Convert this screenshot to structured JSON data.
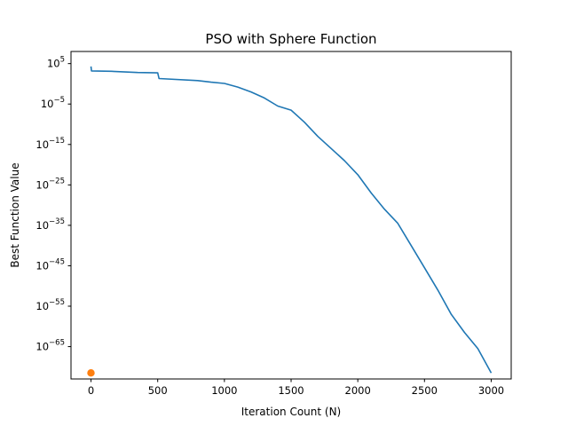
{
  "chart_data": {
    "type": "line",
    "title": "PSO with Sphere Function",
    "xlabel": "Iteration Count (N)",
    "ylabel": "Best Function Value",
    "x_scale": "linear",
    "y_scale": "log",
    "xlim": [
      -150,
      3150
    ],
    "ylim_exponent": [
      -73,
      8
    ],
    "x_ticks": [
      0,
      500,
      1000,
      1500,
      2000,
      2500,
      3000
    ],
    "x_tick_labels": [
      "0",
      "500",
      "1000",
      "1500",
      "2000",
      "2500",
      "3000"
    ],
    "y_tick_exponents": [
      5,
      -5,
      -15,
      -25,
      -35,
      -45,
      -55,
      -65
    ],
    "y_tick_labels": [
      {
        "base": "10",
        "exp": "5"
      },
      {
        "base": "10",
        "exp": "−5"
      },
      {
        "base": "10",
        "exp": "−15"
      },
      {
        "base": "10",
        "exp": "−25"
      },
      {
        "base": "10",
        "exp": "−35"
      },
      {
        "base": "10",
        "exp": "−45"
      },
      {
        "base": "10",
        "exp": "−55"
      },
      {
        "base": "10",
        "exp": "−65"
      }
    ],
    "grid": false,
    "series": [
      {
        "kind": "line",
        "color": "#1f77b4",
        "points_log10": [
          [
            0,
            4.3
          ],
          [
            4,
            3.2
          ],
          [
            150,
            3.1
          ],
          [
            350,
            2.8
          ],
          [
            500,
            2.7
          ],
          [
            510,
            1.3
          ],
          [
            800,
            0.8
          ],
          [
            900,
            0.4
          ],
          [
            1000,
            0.1
          ],
          [
            1100,
            -0.8
          ],
          [
            1200,
            -2.0
          ],
          [
            1300,
            -3.5
          ],
          [
            1400,
            -5.5
          ],
          [
            1500,
            -6.5
          ],
          [
            1600,
            -9.5
          ],
          [
            1700,
            -13.0
          ],
          [
            1800,
            -16.0
          ],
          [
            1900,
            -19.0
          ],
          [
            2000,
            -22.5
          ],
          [
            2100,
            -27.0
          ],
          [
            2200,
            -31.0
          ],
          [
            2300,
            -34.5
          ],
          [
            2400,
            -40.0
          ],
          [
            2500,
            -45.5
          ],
          [
            2600,
            -51.0
          ],
          [
            2700,
            -57.0
          ],
          [
            2800,
            -61.5
          ],
          [
            2900,
            -65.5
          ],
          [
            3000,
            -71.5
          ]
        ]
      },
      {
        "kind": "point",
        "color": "#ff7f0e",
        "points_log10": [
          [
            0,
            -71.5
          ]
        ]
      }
    ]
  }
}
